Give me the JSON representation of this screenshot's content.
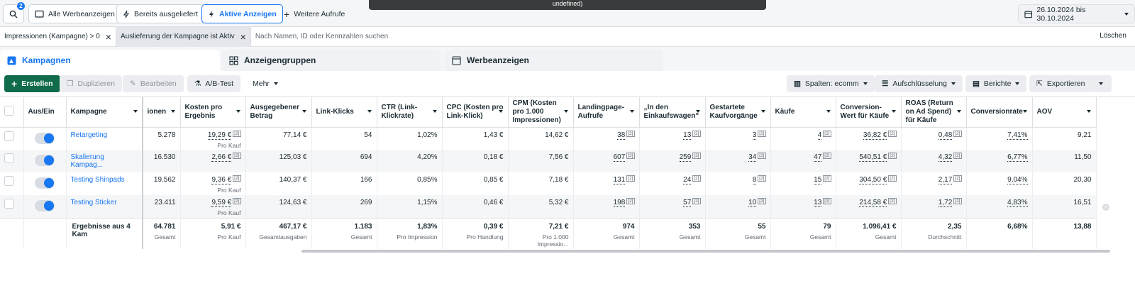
{
  "topbar": {
    "search_badge": "2",
    "tabs": [
      {
        "label": "Alle Werbeanzeigen",
        "icon": "folder-icon"
      },
      {
        "label": "Bereits ausgeliefert",
        "icon": "lightning-outline-icon"
      },
      {
        "label": "Aktive Anzeigen",
        "icon": "lightning-icon"
      },
      {
        "label": "Weitere Aufrufe",
        "icon": "plus-icon"
      }
    ],
    "tooltip_text": "undefined)",
    "date_range": "26.10.2024 bis 30.10.2024"
  },
  "filters": {
    "chip1": "Impressionen (Kampagne) > 0",
    "chip2": "Auslieferung der Kampagne ist Aktiv",
    "search_placeholder": "Nach Namen, ID oder Kennzahlen suchen",
    "clear": "Löschen"
  },
  "level_tabs": {
    "campaigns": "Kampagnen",
    "adsets": "Anzeigengruppen",
    "ads": "Werbeanzeigen"
  },
  "toolbar": {
    "create": "Erstellen",
    "duplicate": "Duplizieren",
    "edit": "Bearbeiten",
    "ab_test": "A/B-Test",
    "more": "Mehr",
    "columns": "Spalten: ecomm",
    "breakdown": "Aufschlüsselung",
    "reports": "Berichte",
    "export": "Exportieren"
  },
  "columns": [
    "Aus/Ein",
    "Kampagne",
    "ionen",
    "Kosten pro Ergebnis",
    "Ausgegebener Betrag",
    "Link-Klicks",
    "CTR (Link-Klickrate)",
    "CPC (Kosten pro Link-Klick)",
    "CPM (Kosten pro 1.000 Impressionen)",
    "Landingpage-Aufrufe",
    "„In den Einkaufswagen“",
    "Gestartete Kaufvorgänge",
    "Käufe",
    "Conversion-Wert für Käufe",
    "ROAS (Return on Ad Spend) für Käufe",
    "Conversionrate",
    "AOV"
  ],
  "rows": [
    {
      "name": "Retargeting",
      "impr": "5.278",
      "cpr": "19,29 €",
      "cpr_sub": "Pro Kauf",
      "spend": "77,14 €",
      "clicks": "54",
      "ctr": "1,02%",
      "cpc": "1,43 €",
      "cpm": "14,62 €",
      "lpv": "38",
      "atc": "13",
      "ic": "3",
      "purch": "4",
      "value": "36,82 €",
      "roas": "0,48",
      "cr": "7,41%",
      "aov": "9,21"
    },
    {
      "name": "Skalierung Kampag...",
      "impr": "16.530",
      "cpr": "2,66 €",
      "cpr_sub": "",
      "spend": "125,03 €",
      "clicks": "694",
      "ctr": "4,20%",
      "cpc": "0,18 €",
      "cpm": "7,56 €",
      "lpv": "607",
      "atc": "259",
      "ic": "34",
      "purch": "47",
      "value": "540,51 €",
      "roas": "4,32",
      "cr": "6,77%",
      "aov": "11,50"
    },
    {
      "name": "Testing Shinpads",
      "impr": "19.562",
      "cpr": "9,36 €",
      "cpr_sub": "Pro Kauf",
      "spend": "140,37 €",
      "clicks": "166",
      "ctr": "0,85%",
      "cpc": "0,85 €",
      "cpm": "7,18 €",
      "lpv": "131",
      "atc": "24",
      "ic": "8",
      "purch": "15",
      "value": "304,50 €",
      "roas": "2,17",
      "cr": "9,04%",
      "aov": "20,30"
    },
    {
      "name": "Testing Sticker",
      "impr": "23.411",
      "cpr": "9,59 €",
      "cpr_sub": "Pro Kauf",
      "spend": "124,63 €",
      "clicks": "269",
      "ctr": "1,15%",
      "cpc": "0,46 €",
      "cpm": "5,32 €",
      "lpv": "198",
      "atc": "57",
      "ic": "10",
      "purch": "13",
      "value": "214,58 €",
      "roas": "1,72",
      "cr": "4,83%",
      "aov": "16,51"
    }
  ],
  "sup": "[2]",
  "totals": {
    "label": "Ergebnisse aus 4 Kam",
    "impr": "64.781",
    "impr_sub": "Gesamt",
    "cpr": "5,91 €",
    "cpr_sub": "Pro Kauf",
    "spend": "467,17 €",
    "spend_sub": "Gesamtausgaben",
    "clicks": "1.183",
    "clicks_sub": "Gesamt",
    "ctr": "1,83%",
    "ctr_sub": "Pro Impression",
    "cpc": "0,39 €",
    "cpc_sub": "Pro Handlung",
    "cpm": "7,21 €",
    "cpm_sub": "Pro 1.000 Impressio...",
    "lpv": "974",
    "lpv_sub": "Gesamt",
    "atc": "353",
    "atc_sub": "Gesamt",
    "ic": "55",
    "ic_sub": "Gesamt",
    "purch": "79",
    "purch_sub": "Gesamt",
    "value": "1.096,41 €",
    "value_sub": "Gesamt",
    "roas": "2,35",
    "roas_sub": "Durchschnitt",
    "cr": "6,68%",
    "aov": "13,88"
  }
}
